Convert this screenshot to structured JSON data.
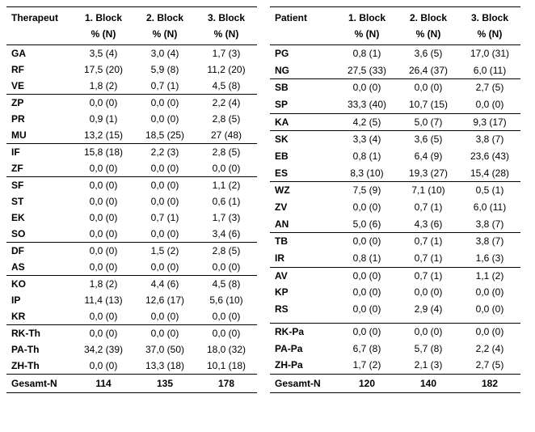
{
  "left": {
    "header": {
      "code": "Therapeut",
      "b1a": "1. Block",
      "b2a": "2. Block",
      "b3a": "3. Block",
      "sub": "% (N)"
    },
    "groups": [
      [
        {
          "code": "GA",
          "b1": "3,5 (4)",
          "b2": "3,0 (4)",
          "b3": "1,7 (3)"
        },
        {
          "code": "RF",
          "b1": "17,5 (20)",
          "b2": "5,9 (8)",
          "b3": "11,2 (20)"
        },
        {
          "code": "VE",
          "b1": "1,8 (2)",
          "b2": "0,7 (1)",
          "b3": "4,5 (8)"
        }
      ],
      [
        {
          "code": "ZP",
          "b1": "0,0 (0)",
          "b2": "0,0 (0)",
          "b3": "2,2 (4)"
        },
        {
          "code": "PR",
          "b1": "0,9 (1)",
          "b2": "0,0 (0)",
          "b3": "2,8 (5)"
        },
        {
          "code": "MU",
          "b1": "13,2 (15)",
          "b2": "18,5 (25)",
          "b3": "27 (48)"
        }
      ],
      [
        {
          "code": "IF",
          "b1": "15,8 (18)",
          "b2": "2,2 (3)",
          "b3": "2,8 (5)"
        },
        {
          "code": "ZF",
          "b1": "0,0 (0)",
          "b2": "0,0 (0)",
          "b3": "0,0 (0)"
        }
      ],
      [
        {
          "code": "SF",
          "b1": "0,0 (0)",
          "b2": "0,0 (0)",
          "b3": "1,1 (2)"
        },
        {
          "code": "ST",
          "b1": "0,0 (0)",
          "b2": "0,0 (0)",
          "b3": "0,6 (1)"
        },
        {
          "code": "EK",
          "b1": "0,0 (0)",
          "b2": "0,7 (1)",
          "b3": "1,7 (3)"
        },
        {
          "code": "SO",
          "b1": "0,0 (0)",
          "b2": "0,0 (0)",
          "b3": "3,4 (6)"
        }
      ],
      [
        {
          "code": "DF",
          "b1": "0,0 (0)",
          "b2": "1,5 (2)",
          "b3": "2,8 (5)"
        },
        {
          "code": "AS",
          "b1": "0,0 (0)",
          "b2": "0,0 (0)",
          "b3": "0,0 (0)"
        }
      ],
      [
        {
          "code": "KO",
          "b1": "1,8 (2)",
          "b2": "4,4 (6)",
          "b3": "4,5 (8)"
        },
        {
          "code": "IP",
          "b1": "11,4 (13)",
          "b2": "12,6 (17)",
          "b3": "5,6 (10)"
        },
        {
          "code": "KR",
          "b1": "0,0 (0)",
          "b2": "0,0 (0)",
          "b3": "0,0 (0)"
        }
      ],
      [
        {
          "code": "RK-Th",
          "b1": "0,0 (0)",
          "b2": "0,0 (0)",
          "b3": "0,0 (0)"
        },
        {
          "code": "PA-Th",
          "b1": "34,2 (39)",
          "b2": "37,0 (50)",
          "b3": "18,0 (32)"
        },
        {
          "code": "ZH-Th",
          "b1": "0,0 (0)",
          "b2": "13,3 (18)",
          "b3": "10,1 (18)"
        }
      ]
    ],
    "footer": {
      "code": "Gesamt-N",
      "b1": "114",
      "b2": "135",
      "b3": "178"
    }
  },
  "right": {
    "header": {
      "code": "Patient",
      "b1a": "1. Block",
      "b2a": "2. Block",
      "b3a": "3. Block",
      "sub": "% (N)"
    },
    "groups": [
      [
        {
          "code": "PG",
          "b1": "0,8 (1)",
          "b2": "3,6 (5)",
          "b3": "17,0 (31)"
        },
        {
          "code": "NG",
          "b1": "27,5 (33)",
          "b2": "26,4 (37)",
          "b3": "6,0 (11)"
        }
      ],
      [
        {
          "code": "SB",
          "b1": "0,0 (0)",
          "b2": "0,0 (0)",
          "b3": "2,7 (5)"
        },
        {
          "code": "SP",
          "b1": "33,3 (40)",
          "b2": "10,7 (15)",
          "b3": "0,0 (0)"
        }
      ],
      [
        {
          "code": "KA",
          "b1": "4,2 (5)",
          "b2": "5,0 (7)",
          "b3": "9,3 (17)"
        }
      ],
      [
        {
          "code": "SK",
          "b1": "3,3 (4)",
          "b2": "3,6 (5)",
          "b3": "3,8 (7)"
        },
        {
          "code": "EB",
          "b1": "0,8 (1)",
          "b2": "6,4 (9)",
          "b3": "23,6 (43)"
        },
        {
          "code": "ES",
          "b1": "8,3 (10)",
          "b2": "19,3 (27)",
          "b3": "15,4 (28)"
        }
      ],
      [
        {
          "code": "WZ",
          "b1": "7,5 (9)",
          "b2": "7,1 (10)",
          "b3": "0,5 (1)"
        },
        {
          "code": "ZV",
          "b1": "0,0 (0)",
          "b2": "0,7 (1)",
          "b3": "6,0 (11)"
        },
        {
          "code": "AN",
          "b1": "5,0 (6)",
          "b2": "4,3 (6)",
          "b3": "3,8 (7)"
        }
      ],
      [
        {
          "code": "TB",
          "b1": "0,0 (0)",
          "b2": "0,7 (1)",
          "b3": "3,8 (7)"
        },
        {
          "code": "IR",
          "b1": "0,8 (1)",
          "b2": "0,7 (1)",
          "b3": "1,6 (3)"
        }
      ],
      [
        {
          "code": "AV",
          "b1": "0,0 (0)",
          "b2": "0,7 (1)",
          "b3": "1,1 (2)"
        },
        {
          "code": "KP",
          "b1": "0,0 (0)",
          "b2": "0,0 (0)",
          "b3": "0,0 (0)"
        },
        {
          "code": "RS",
          "b1": "0,0 (0)",
          "b2": "2,9 (4)",
          "b3": "0,0 (0)"
        },
        {
          "code": "",
          "b1": "",
          "b2": "",
          "b3": ""
        }
      ],
      [
        {
          "code": "RK-Pa",
          "b1": "0,0 (0)",
          "b2": "0,0 (0)",
          "b3": "0,0 (0)"
        },
        {
          "code": "PA-Pa",
          "b1": "6,7 (8)",
          "b2": "5,7 (8)",
          "b3": "2,2 (4)"
        },
        {
          "code": "ZH-Pa",
          "b1": "1,7 (2)",
          "b2": "2,1 (3)",
          "b3": "2,7 (5)"
        }
      ]
    ],
    "footer": {
      "code": "Gesamt-N",
      "b1": "120",
      "b2": "140",
      "b3": "182"
    }
  }
}
